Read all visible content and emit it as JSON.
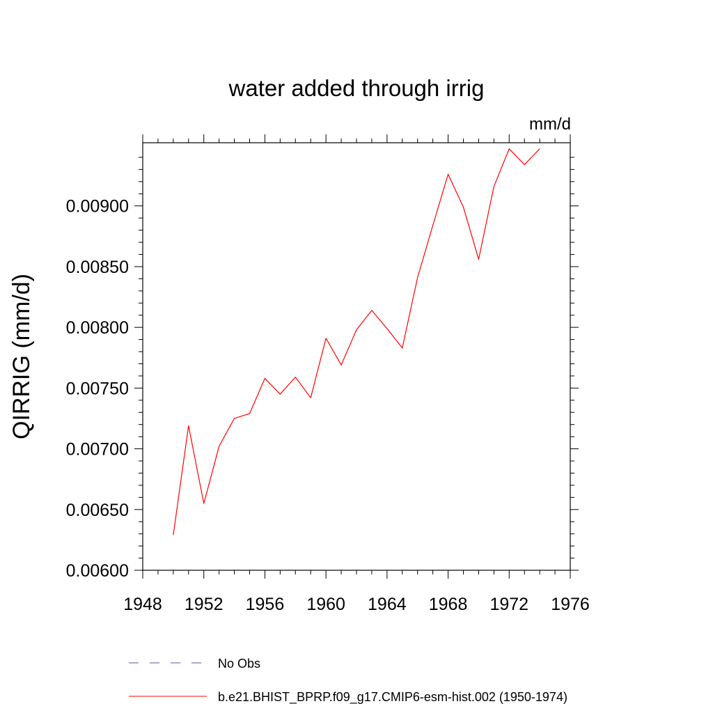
{
  "chart_data": {
    "type": "line",
    "title": "water added through irrig",
    "units_label": "mm/d",
    "xlabel": "",
    "ylabel": "QIRRIG  (mm/d)",
    "xlim": [
      1948,
      1976
    ],
    "ylim": [
      0.006,
      0.00952
    ],
    "x_ticks": [
      1948,
      1952,
      1956,
      1960,
      1964,
      1968,
      1972,
      1976
    ],
    "x_tick_labels": [
      "1948",
      "1952",
      "1956",
      "1960",
      "1964",
      "1968",
      "1972",
      "1976"
    ],
    "y_ticks": [
      0.006,
      0.0065,
      0.007,
      0.0075,
      0.008,
      0.0085,
      0.009
    ],
    "y_tick_labels": [
      "0.00600",
      "0.00650",
      "0.00700",
      "0.00750",
      "0.00800",
      "0.00850",
      "0.00900"
    ],
    "grid": false,
    "series": [
      {
        "name": "b.e21.BHIST_BPRP.f09_g17.CMIP6-esm-hist.002 (1950-1974)",
        "color": "#ff0000",
        "style": "solid",
        "x": [
          1950,
          1951,
          1952,
          1953,
          1954,
          1955,
          1956,
          1957,
          1958,
          1959,
          1960,
          1961,
          1962,
          1963,
          1964,
          1965,
          1966,
          1967,
          1968,
          1969,
          1970,
          1971,
          1972,
          1973,
          1974
        ],
        "values": [
          0.00629,
          0.00719,
          0.00655,
          0.00702,
          0.00725,
          0.00729,
          0.00758,
          0.00745,
          0.00759,
          0.00742,
          0.00791,
          0.00769,
          0.00798,
          0.00814,
          0.00799,
          0.00783,
          0.00841,
          0.00884,
          0.00926,
          0.00899,
          0.00856,
          0.00916,
          0.00947,
          0.00934,
          0.00947
        ]
      }
    ],
    "legend": [
      {
        "label": "No Obs",
        "color": "#5555aa",
        "style": "dashed"
      },
      {
        "label": "b.e21.BHIST_BPRP.f09_g17.CMIP6-esm-hist.002 (1950-1974)",
        "color": "#ff0000",
        "style": "solid"
      }
    ]
  }
}
